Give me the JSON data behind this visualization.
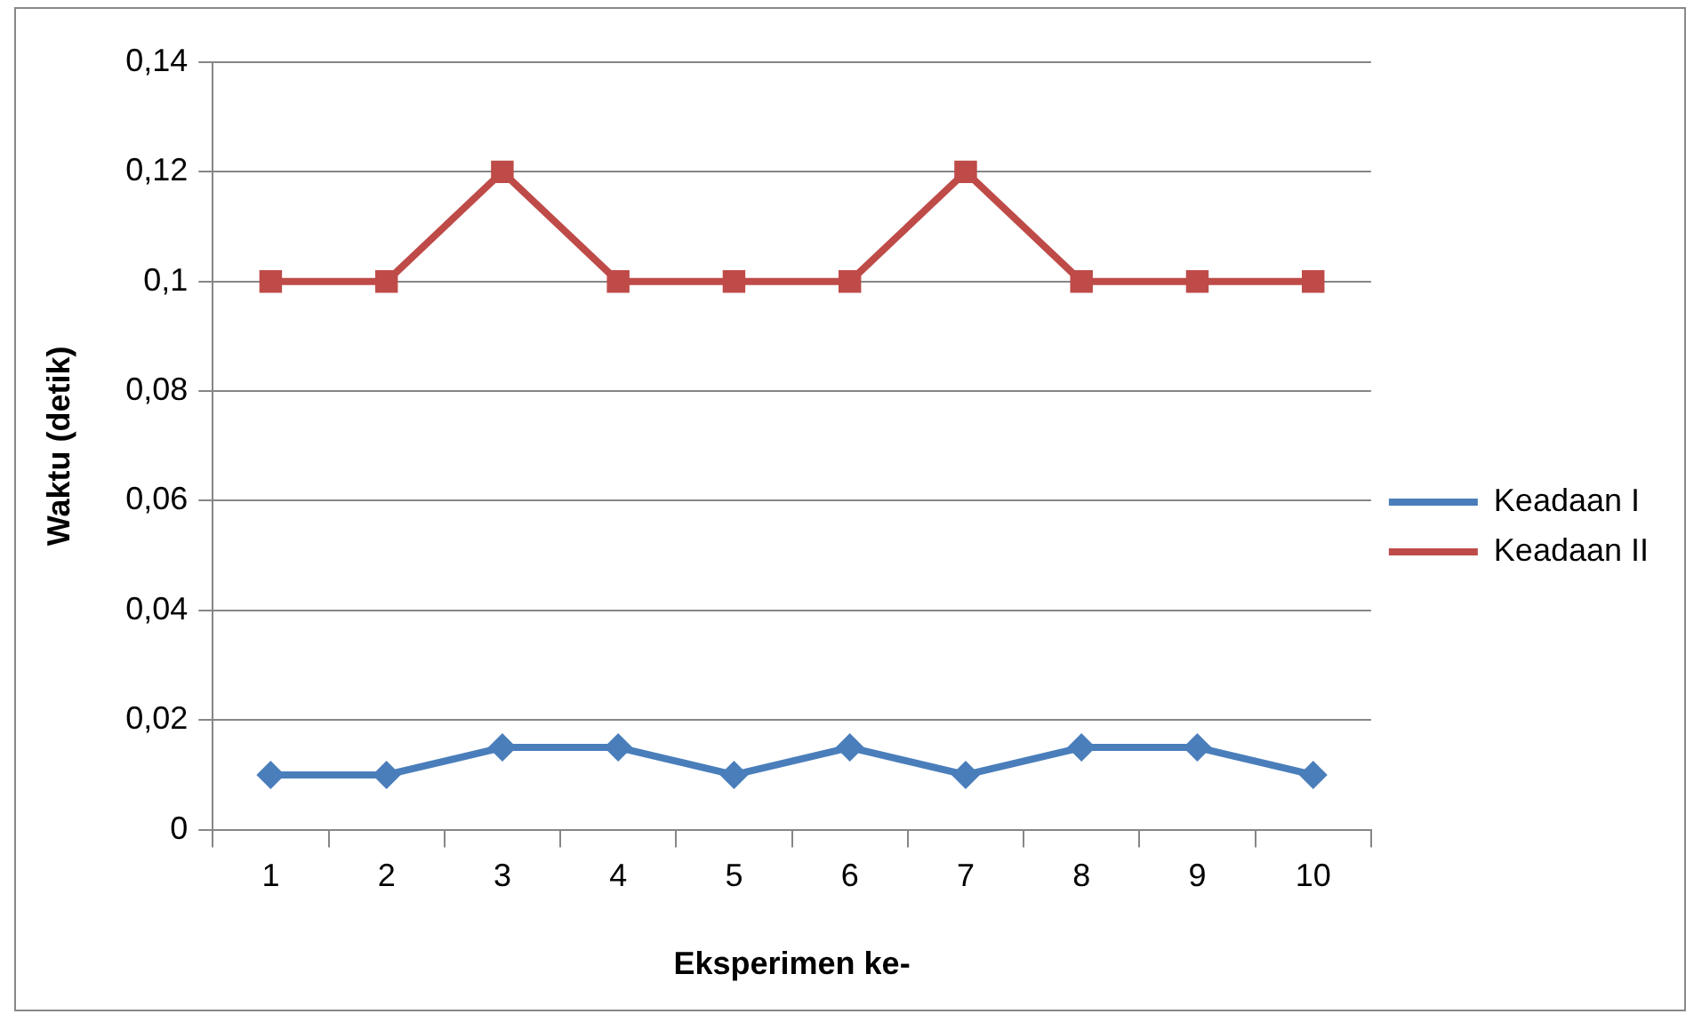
{
  "chart_data": {
    "type": "line",
    "xlabel": "Eksperimen ke-",
    "ylabel": "Waktu (detik)",
    "categories": [
      "1",
      "2",
      "3",
      "4",
      "5",
      "6",
      "7",
      "8",
      "9",
      "10"
    ],
    "series": [
      {
        "name": "Keadaan I",
        "color": "#4a7ebb",
        "marker": "diamond",
        "values": [
          0.01,
          0.01,
          0.015,
          0.015,
          0.01,
          0.015,
          0.01,
          0.015,
          0.015,
          0.01
        ]
      },
      {
        "name": "Keadaan II",
        "color": "#be4b48",
        "marker": "square",
        "values": [
          0.1,
          0.1,
          0.12,
          0.1,
          0.1,
          0.1,
          0.12,
          0.1,
          0.1,
          0.1
        ]
      }
    ],
    "ylim": [
      0,
      0.14
    ],
    "yticks": [
      0,
      {
        "value": 0.02,
        "label": "0,02"
      },
      {
        "value": 0.04,
        "label": "0,04"
      },
      {
        "value": 0.06,
        "label": "0,06"
      },
      {
        "value": 0.08,
        "label": "0,08"
      },
      {
        "value": 0.1,
        "label": "0,1"
      },
      {
        "value": 0.12,
        "label": "0,12"
      },
      {
        "value": 0.14,
        "label": "0,14"
      }
    ],
    "grid": "y",
    "legend": "right",
    "line_style": "solid"
  }
}
